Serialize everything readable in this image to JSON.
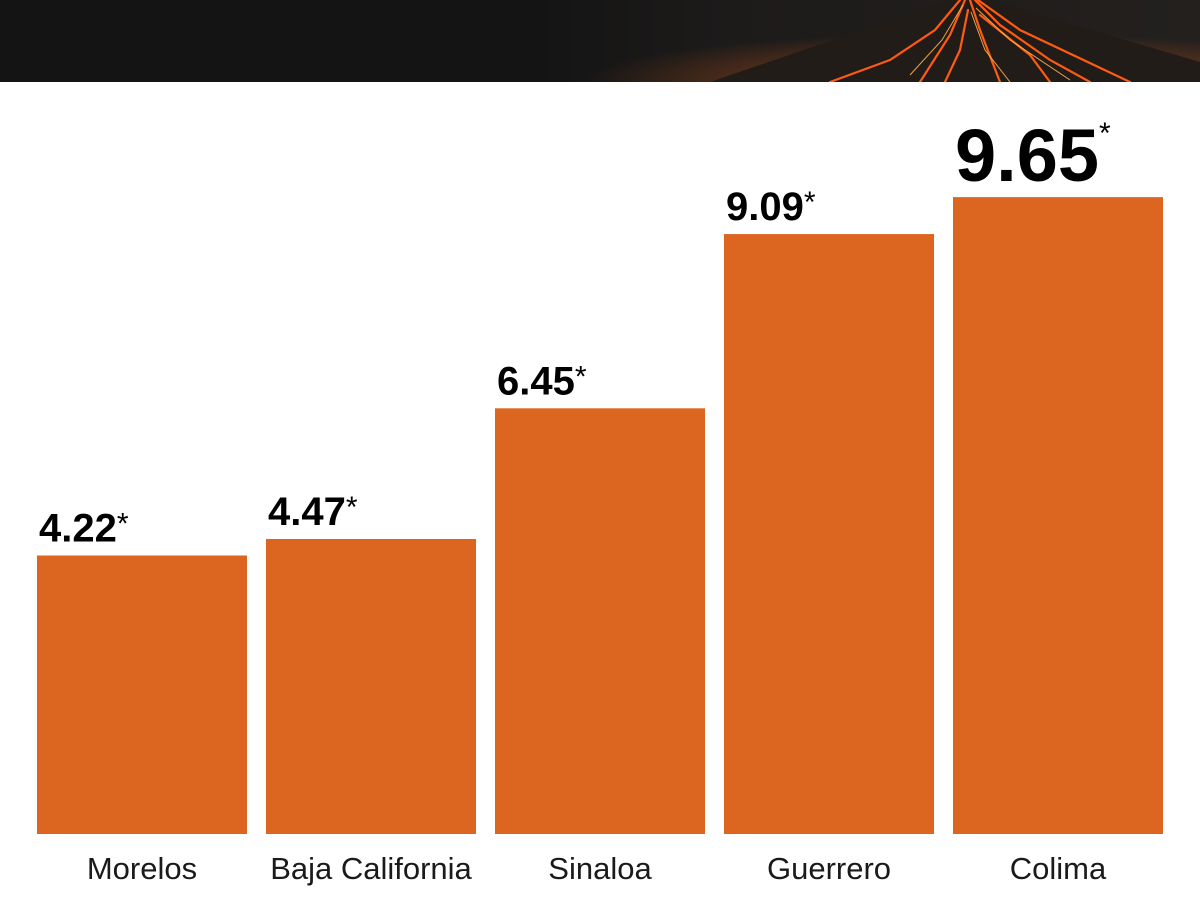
{
  "header": {
    "image_subject": "volcano-lava-photo"
  },
  "colors": {
    "bar": "#dc661f",
    "banner_bg": "#141414",
    "value_text": "#000000",
    "category_text": "#1a1a1a",
    "lava": "#e8531a"
  },
  "chart_data": {
    "type": "bar",
    "title": "",
    "xlabel": "",
    "ylabel": "",
    "categories": [
      "Morelos",
      "Baja California",
      "Sinaloa",
      "Guerrero",
      "Colima"
    ],
    "values": [
      4.22,
      4.47,
      6.45,
      9.09,
      9.65
    ],
    "value_labels": [
      "4.22",
      "4.47",
      "6.45",
      "9.09",
      "9.65"
    ],
    "value_suffix": "*",
    "ylim": [
      0,
      10
    ],
    "grid": false,
    "highlight_index": 4
  }
}
